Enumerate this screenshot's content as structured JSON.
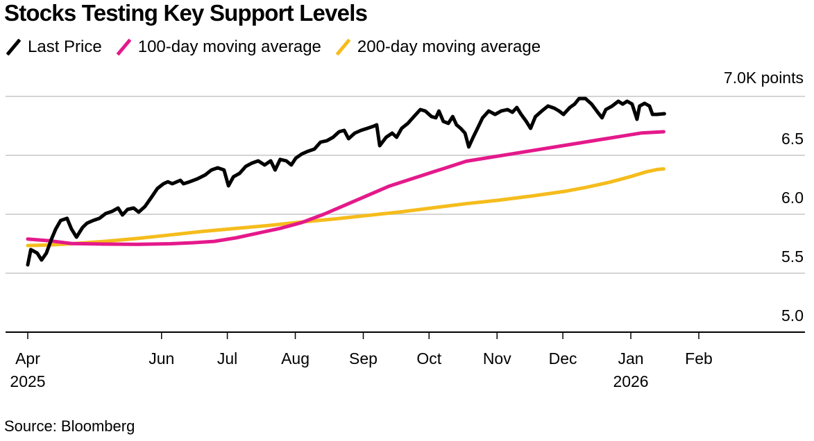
{
  "chart_data": {
    "type": "line",
    "title": "Stocks Testing Key Support Levels",
    "source": "Source: Bloomberg",
    "unit_label": "7.0K points",
    "ylabel": "",
    "xlabel": "",
    "ylim": [
      5000,
      7000
    ],
    "y_ticks": [
      {
        "value": 7000,
        "label": "7.0K points"
      },
      {
        "value": 6500,
        "label": "6.5"
      },
      {
        "value": 6000,
        "label": "6.0"
      },
      {
        "value": 5500,
        "label": "5.5"
      },
      {
        "value": 5000,
        "label": "5.0"
      }
    ],
    "x_axis_unit": "days since 2025-04-01",
    "xlim": [
      0,
      310
    ],
    "x_ticks": [
      {
        "day": 0,
        "label": "Apr",
        "year": "2025"
      },
      {
        "day": 61,
        "label": "Jun",
        "year": ""
      },
      {
        "day": 91,
        "label": "Jul",
        "year": ""
      },
      {
        "day": 122,
        "label": "Aug",
        "year": ""
      },
      {
        "day": 153,
        "label": "Sep",
        "year": ""
      },
      {
        "day": 183,
        "label": "Oct",
        "year": ""
      },
      {
        "day": 214,
        "label": "Nov",
        "year": ""
      },
      {
        "day": 244,
        "label": "Dec",
        "year": ""
      },
      {
        "day": 275,
        "label": "Jan",
        "year": "2026"
      },
      {
        "day": 306,
        "label": "Feb",
        "year": ""
      }
    ],
    "grid": true,
    "legend_position": "top-left",
    "series": [
      {
        "name": "Last Price",
        "color": "#000000",
        "points": [
          [
            0,
            5571
          ],
          [
            1.4,
            5700
          ],
          [
            4.3,
            5671
          ],
          [
            6.3,
            5612
          ],
          [
            8.5,
            5671
          ],
          [
            10.8,
            5788
          ],
          [
            12.8,
            5876
          ],
          [
            15,
            5947
          ],
          [
            17.9,
            5965
          ],
          [
            19.9,
            5876
          ],
          [
            22.2,
            5806
          ],
          [
            25,
            5888
          ],
          [
            27,
            5924
          ],
          [
            29.8,
            5947
          ],
          [
            32.7,
            5965
          ],
          [
            35.5,
            6006
          ],
          [
            38.4,
            6024
          ],
          [
            41.2,
            6053
          ],
          [
            43.2,
            5994
          ],
          [
            45.5,
            6041
          ],
          [
            48.3,
            6053
          ],
          [
            50.6,
            6018
          ],
          [
            53.4,
            6065
          ],
          [
            56.3,
            6141
          ],
          [
            59.1,
            6218
          ],
          [
            61.9,
            6259
          ],
          [
            63.9,
            6276
          ],
          [
            65.9,
            6259
          ],
          [
            69.6,
            6288
          ],
          [
            71,
            6259
          ],
          [
            73.9,
            6276
          ],
          [
            77.3,
            6300
          ],
          [
            81,
            6335
          ],
          [
            83.8,
            6376
          ],
          [
            86.6,
            6394
          ],
          [
            89.5,
            6376
          ],
          [
            91.5,
            6241
          ],
          [
            93.8,
            6318
          ],
          [
            96.6,
            6347
          ],
          [
            99.4,
            6406
          ],
          [
            102.3,
            6435
          ],
          [
            105.1,
            6453
          ],
          [
            108,
            6418
          ],
          [
            110.8,
            6453
          ],
          [
            112.8,
            6376
          ],
          [
            115.1,
            6465
          ],
          [
            117.9,
            6453
          ],
          [
            120.2,
            6418
          ],
          [
            122.2,
            6476
          ],
          [
            125,
            6512
          ],
          [
            127.8,
            6535
          ],
          [
            130.7,
            6553
          ],
          [
            133.5,
            6612
          ],
          [
            136.4,
            6624
          ],
          [
            139.2,
            6653
          ],
          [
            142,
            6700
          ],
          [
            144.3,
            6712
          ],
          [
            146.3,
            6641
          ],
          [
            149.1,
            6688
          ],
          [
            152,
            6712
          ],
          [
            154.8,
            6729
          ],
          [
            157.7,
            6747
          ],
          [
            159.1,
            6759
          ],
          [
            160.5,
            6582
          ],
          [
            163.4,
            6653
          ],
          [
            166.2,
            6688
          ],
          [
            168.2,
            6653
          ],
          [
            170.5,
            6729
          ],
          [
            173.3,
            6771
          ],
          [
            176.1,
            6829
          ],
          [
            179,
            6888
          ],
          [
            181.3,
            6876
          ],
          [
            184.1,
            6829
          ],
          [
            186.1,
            6818
          ],
          [
            187.5,
            6876
          ],
          [
            189.5,
            6788
          ],
          [
            191.8,
            6771
          ],
          [
            193.8,
            6829
          ],
          [
            195.5,
            6759
          ],
          [
            197.4,
            6729
          ],
          [
            199.4,
            6688
          ],
          [
            201.1,
            6571
          ],
          [
            203.1,
            6653
          ],
          [
            205.1,
            6729
          ],
          [
            207.4,
            6818
          ],
          [
            210.2,
            6876
          ],
          [
            213.1,
            6847
          ],
          [
            215.9,
            6876
          ],
          [
            218.8,
            6888
          ],
          [
            221,
            6865
          ],
          [
            223,
            6906
          ],
          [
            225,
            6847
          ],
          [
            227.3,
            6788
          ],
          [
            229.3,
            6729
          ],
          [
            231.5,
            6829
          ],
          [
            234.4,
            6876
          ],
          [
            237.2,
            6918
          ],
          [
            240.1,
            6900
          ],
          [
            242.3,
            6876
          ],
          [
            244.3,
            6847
          ],
          [
            247.2,
            6906
          ],
          [
            249.4,
            6935
          ],
          [
            251.4,
            6982
          ],
          [
            254.3,
            6982
          ],
          [
            257.1,
            6935
          ],
          [
            259.9,
            6865
          ],
          [
            261.9,
            6818
          ],
          [
            263.6,
            6888
          ],
          [
            266.5,
            6918
          ],
          [
            269.3,
            6959
          ],
          [
            271.3,
            6935
          ],
          [
            273.3,
            6959
          ],
          [
            275.6,
            6935
          ],
          [
            277.8,
            6806
          ],
          [
            279,
            6918
          ],
          [
            281.3,
            6941
          ],
          [
            283.5,
            6918
          ],
          [
            284.9,
            6847
          ],
          [
            286.9,
            6847
          ],
          [
            290.3,
            6853
          ]
        ]
      },
      {
        "name": "100-day moving average",
        "color": "#e4198b",
        "points": [
          [
            0,
            5790
          ],
          [
            10,
            5775
          ],
          [
            20,
            5752
          ],
          [
            35,
            5747
          ],
          [
            50,
            5745
          ],
          [
            65,
            5750
          ],
          [
            75,
            5758
          ],
          [
            85,
            5770
          ],
          [
            95,
            5800
          ],
          [
            105,
            5840
          ],
          [
            115,
            5880
          ],
          [
            125,
            5930
          ],
          [
            135,
            6000
          ],
          [
            145,
            6080
          ],
          [
            155,
            6160
          ],
          [
            165,
            6240
          ],
          [
            175,
            6300
          ],
          [
            185,
            6360
          ],
          [
            195,
            6420
          ],
          [
            200,
            6450
          ],
          [
            210,
            6480
          ],
          [
            220,
            6510
          ],
          [
            230,
            6540
          ],
          [
            240,
            6570
          ],
          [
            250,
            6600
          ],
          [
            260,
            6630
          ],
          [
            270,
            6660
          ],
          [
            280,
            6690
          ],
          [
            290,
            6700
          ]
        ]
      },
      {
        "name": "200-day moving average",
        "color": "#f5bc1c",
        "points": [
          [
            0,
            5735
          ],
          [
            10,
            5740
          ],
          [
            20,
            5750
          ],
          [
            35,
            5770
          ],
          [
            50,
            5795
          ],
          [
            65,
            5825
          ],
          [
            80,
            5855
          ],
          [
            95,
            5880
          ],
          [
            110,
            5905
          ],
          [
            125,
            5935
          ],
          [
            140,
            5960
          ],
          [
            155,
            5990
          ],
          [
            170,
            6020
          ],
          [
            185,
            6055
          ],
          [
            200,
            6090
          ],
          [
            215,
            6120
          ],
          [
            230,
            6155
          ],
          [
            245,
            6195
          ],
          [
            255,
            6230
          ],
          [
            265,
            6270
          ],
          [
            275,
            6320
          ],
          [
            282,
            6360
          ],
          [
            287,
            6380
          ],
          [
            290,
            6385
          ]
        ]
      }
    ]
  }
}
